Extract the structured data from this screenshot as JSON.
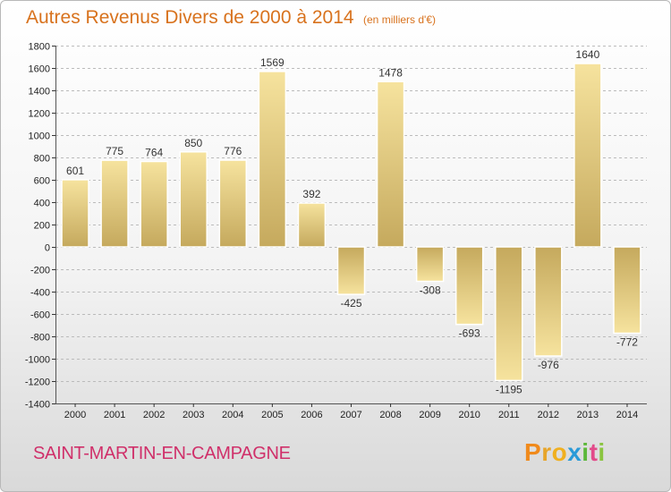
{
  "chart_data": {
    "type": "bar",
    "title": "Autres Revenus Divers de 2000 à 2014",
    "subtitle": "(en milliers d'€)",
    "xlabel": "",
    "ylabel": "",
    "categories": [
      "2000",
      "2001",
      "2002",
      "2003",
      "2004",
      "2005",
      "2006",
      "2007",
      "2008",
      "2009",
      "2010",
      "2011",
      "2012",
      "2013",
      "2014"
    ],
    "values": [
      601,
      775,
      764,
      850,
      776,
      1569,
      392,
      -425,
      1478,
      -308,
      -693,
      -1195,
      -976,
      1640,
      -772
    ],
    "ylim": [
      -1400,
      1800
    ],
    "yticks": [
      1800,
      1600,
      1400,
      1200,
      1000,
      800,
      600,
      400,
      200,
      0,
      -200,
      -400,
      -600,
      -800,
      -1000,
      -1200,
      -1400
    ],
    "grid": true,
    "legend": "none"
  },
  "footer": {
    "commune": "SAINT-MARTIN-EN-CAMPAGNE",
    "logo_letters": [
      "P",
      "r",
      "o",
      "x",
      "i",
      "t",
      "i"
    ]
  },
  "colors": {
    "title": "#d8721d",
    "commune": "#d0306a",
    "bar_light": "#f6e39e",
    "bar_dark": "#c5a95d",
    "grid": "#bbbbbb"
  }
}
